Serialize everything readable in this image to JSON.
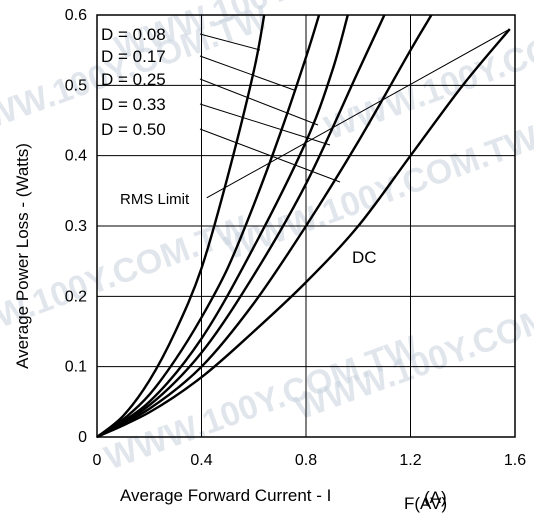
{
  "chart_data": {
    "type": "line",
    "xlabel": "Average Forward Current - I",
    "xlabel_suffix": "F(AV)",
    "xlabel_unit": "(A)",
    "ylabel": "Average Power Loss - (Watts)",
    "xlim": [
      0,
      1.6
    ],
    "ylim": [
      0,
      0.6
    ],
    "x_ticks": [
      "0",
      "0.4",
      "0.8",
      "1.2",
      "1.6"
    ],
    "y_ticks": [
      "0",
      "0.1",
      "0.2",
      "0.3",
      "0.4",
      "0.5",
      "0.6"
    ],
    "grid": true,
    "series": [
      {
        "name": "D = 0.08",
        "x": [
          0,
          0.1,
          0.2,
          0.3,
          0.4,
          0.5,
          0.6,
          0.64
        ],
        "y": [
          0,
          0.03,
          0.08,
          0.15,
          0.24,
          0.37,
          0.52,
          0.6
        ]
      },
      {
        "name": "D = 0.17",
        "x": [
          0,
          0.1,
          0.2,
          0.3,
          0.4,
          0.5,
          0.6,
          0.7,
          0.8,
          0.85
        ],
        "y": [
          0,
          0.025,
          0.06,
          0.11,
          0.17,
          0.24,
          0.33,
          0.43,
          0.54,
          0.6
        ]
      },
      {
        "name": "D = 0.25",
        "x": [
          0,
          0.2,
          0.4,
          0.6,
          0.8,
          0.9,
          0.96
        ],
        "y": [
          0,
          0.05,
          0.14,
          0.27,
          0.42,
          0.52,
          0.6
        ]
      },
      {
        "name": "D = 0.33",
        "x": [
          0,
          0.2,
          0.4,
          0.6,
          0.8,
          1.0,
          1.1
        ],
        "y": [
          0,
          0.045,
          0.12,
          0.23,
          0.36,
          0.52,
          0.6
        ]
      },
      {
        "name": "D = 0.50",
        "x": [
          0,
          0.2,
          0.4,
          0.6,
          0.8,
          1.0,
          1.2,
          1.28
        ],
        "y": [
          0,
          0.04,
          0.1,
          0.19,
          0.3,
          0.42,
          0.55,
          0.6
        ]
      },
      {
        "name": "DC",
        "x": [
          0,
          0.2,
          0.4,
          0.6,
          0.8,
          1.0,
          1.2,
          1.4,
          1.58
        ],
        "y": [
          0,
          0.035,
          0.085,
          0.15,
          0.22,
          0.3,
          0.4,
          0.5,
          0.58
        ]
      }
    ],
    "rms_limit": {
      "label": "RMS Limit",
      "x": [
        0.42,
        1.58
      ],
      "y": [
        0.34,
        0.58
      ]
    },
    "annotations": [
      "D = 0.08",
      "D = 0.17",
      "D = 0.25",
      "D = 0.33",
      "D = 0.50",
      "DC",
      "RMS Limit"
    ]
  },
  "watermark": "WWW.100Y.COM.TW"
}
